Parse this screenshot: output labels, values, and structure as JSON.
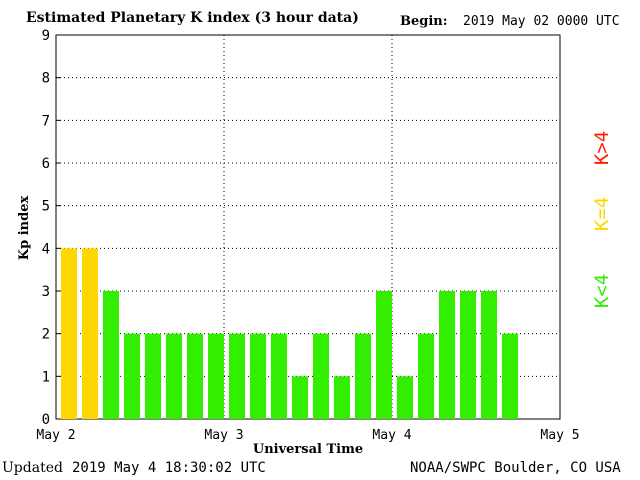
{
  "header": {
    "title": "Estimated Planetary K index (3 hour data)",
    "begin_label": "Begin:",
    "begin_value": "2019 May 02 0000 UTC"
  },
  "footer": {
    "updated_label": "Updated",
    "updated_value": "2019 May  4 18:30:02 UTC",
    "source": "NOAA/SWPC Boulder, CO USA"
  },
  "legend": {
    "high": {
      "label": "K>4",
      "color": "#ff2000"
    },
    "equal": {
      "label": "K=4",
      "color": "#ffd700"
    },
    "low": {
      "label": "K<4",
      "color": "#33ee00"
    }
  },
  "chart_data": {
    "type": "bar",
    "title": "Estimated Planetary K index (3 hour data)",
    "xlabel": "Universal Time",
    "ylabel": "Kp index",
    "ylim": [
      0,
      9
    ],
    "yticks": [
      "0",
      "1",
      "2",
      "3",
      "4",
      "5",
      "6",
      "7",
      "8",
      "9"
    ],
    "xticks": [
      "May 2",
      "May 3",
      "May 4",
      "May 5"
    ],
    "bars_per_day": 8,
    "values": [
      4,
      4,
      3,
      2,
      2,
      2,
      2,
      2,
      2,
      2,
      2,
      1,
      2,
      1,
      2,
      3,
      1,
      2,
      3,
      3,
      3,
      2
    ],
    "grid": true,
    "colors": {
      "low": "#33ee00",
      "equal": "#ffd700",
      "high": "#ff2000"
    }
  }
}
